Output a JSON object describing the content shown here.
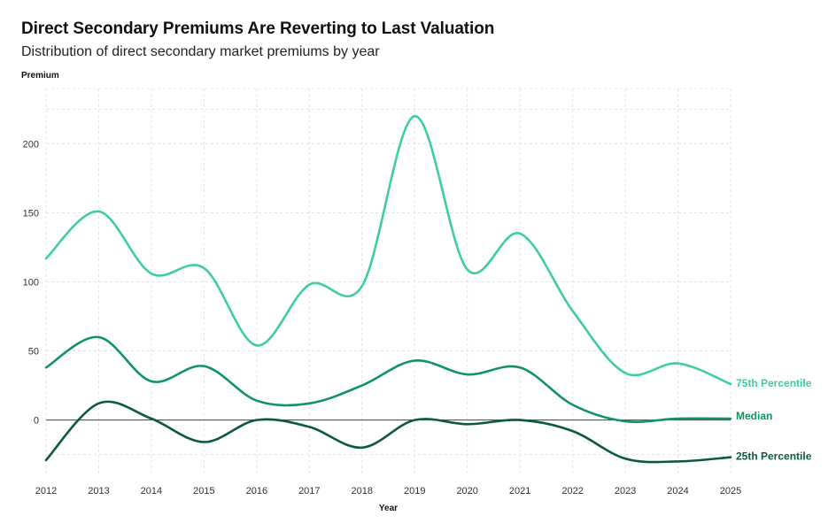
{
  "chart_data": {
    "type": "line",
    "title": "Direct Secondary Premiums Are Reverting to Last Valuation",
    "subtitle": "Distribution of direct secondary market premiums by year",
    "xlabel": "Year",
    "ylabel": "Premium",
    "x": [
      2012,
      2013,
      2014,
      2015,
      2016,
      2017,
      2018,
      2019,
      2020,
      2021,
      2022,
      2023,
      2024,
      2025
    ],
    "x_ticks": [
      "2012",
      "2013",
      "2014",
      "2015",
      "2016",
      "2017",
      "2018",
      "2019",
      "2020",
      "2021",
      "2022",
      "2023",
      "2024",
      "2025"
    ],
    "y_ticks": [
      "0",
      "50",
      "100",
      "150",
      "200"
    ],
    "ylim": [
      -40,
      240
    ],
    "grid": true,
    "series": [
      {
        "name": "75th Percentile",
        "color": "#3ecf9a",
        "values": [
          117,
          151,
          106,
          110,
          54,
          98,
          97,
          220,
          109,
          135,
          79,
          34,
          41,
          26
        ]
      },
      {
        "name": "Median",
        "color": "#11945f",
        "values": [
          38,
          60,
          28,
          39,
          14,
          12,
          25,
          43,
          33,
          38,
          11,
          -1,
          1,
          1
        ]
      },
      {
        "name": "25th Percentile",
        "color": "#0b5a3d",
        "values": [
          -29,
          12,
          1,
          -16,
          0,
          -5,
          -20,
          0,
          -3,
          0,
          -8,
          -28,
          -30,
          -27
        ]
      }
    ]
  }
}
